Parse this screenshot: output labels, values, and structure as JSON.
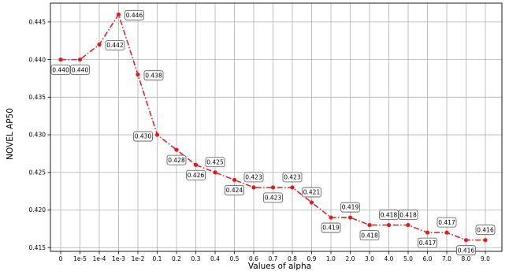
{
  "chart_data": {
    "type": "line",
    "xlabel": "Values of alpha",
    "ylabel": "NOVEL AP50",
    "categories": [
      "0",
      "1e-5",
      "1e-4",
      "1e-3",
      "1e-2",
      "0.1",
      "0.2",
      "0.3",
      "0.4",
      "0.5",
      "0.6",
      "0.7",
      "0.8",
      "0.9",
      "1.0",
      "2.0",
      "3.0",
      "4.0",
      "5.0",
      "6.0",
      "7.0",
      "8.0",
      "9.0"
    ],
    "series": [
      {
        "values": [
          0.44,
          0.44,
          0.442,
          0.446,
          0.438,
          0.43,
          0.428,
          0.426,
          0.425,
          0.424,
          0.423,
          0.423,
          0.423,
          0.421,
          0.419,
          0.419,
          0.418,
          0.418,
          0.418,
          0.417,
          0.417,
          0.416,
          0.416
        ],
        "labels": [
          "0.440",
          "0.440",
          "0.442",
          "0.446",
          "0.438",
          "0.430",
          "0.428",
          "0.426",
          "0.425",
          "0.424",
          "0.423",
          "0.423",
          "0.423",
          "0.421",
          "0.419",
          "0.419",
          "0.418",
          "0.418",
          "0.418",
          "0.417",
          "0.417",
          "0.416",
          "0.416"
        ],
        "label_side": [
          "below",
          "below",
          "right",
          "right",
          "right",
          "left",
          "below",
          "below",
          "above",
          "below",
          "above",
          "below",
          "above",
          "above",
          "below",
          "above",
          "below",
          "above",
          "above",
          "below",
          "above",
          "below",
          "above"
        ],
        "color": "#e31a1c",
        "line_style": "dash-dot",
        "marker": "circle"
      }
    ],
    "yticks": [
      "0.415",
      "0.420",
      "0.425",
      "0.430",
      "0.435",
      "0.440",
      "0.445"
    ],
    "ylim": [
      0.4145,
      0.4475
    ],
    "grid": true,
    "legend": "none"
  }
}
